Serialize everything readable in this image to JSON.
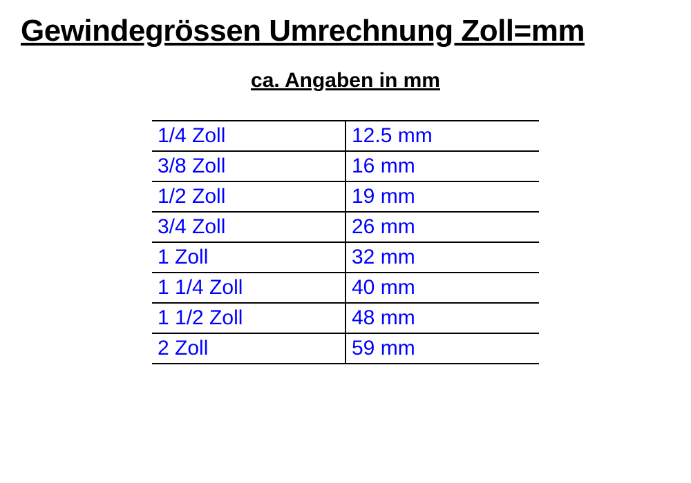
{
  "title": "Gewindegrössen Umrechnung Zoll=mm",
  "subtitle": "ca. Angaben in mm",
  "table": {
    "text_color": "#0000ff",
    "border_color": "#000000",
    "cell_fontsize": 30,
    "rows": [
      {
        "zoll": "1/4 Zoll",
        "mm": "12.5 mm"
      },
      {
        "zoll": "3/8 Zoll",
        "mm": "16 mm"
      },
      {
        "zoll": "1/2 Zoll",
        "mm": "19 mm"
      },
      {
        "zoll": "3/4 Zoll",
        "mm": "26 mm"
      },
      {
        "zoll": "1 Zoll",
        "mm": "32 mm"
      },
      {
        "zoll": "1 1/4 Zoll",
        "mm": "40 mm"
      },
      {
        "zoll": "1 1/2 Zoll",
        "mm": "48 mm"
      },
      {
        "zoll": "2 Zoll",
        "mm": "59 mm"
      }
    ]
  },
  "styling": {
    "background_color": "#ffffff",
    "title_color": "#000000",
    "title_fontsize": 44,
    "subtitle_fontsize": 30
  }
}
